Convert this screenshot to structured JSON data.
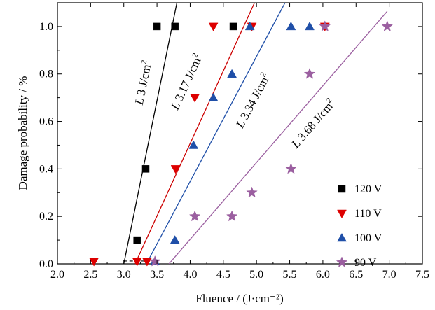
{
  "chart_data": {
    "type": "scatter",
    "xlabel": "Fluence / (J·cm⁻²)",
    "ylabel": "Damage probability / %",
    "xlim": [
      2.0,
      7.5
    ],
    "ylim": [
      0.0,
      1.1
    ],
    "xticks": [
      "2.0",
      "2.5",
      "3.0",
      "3.5",
      "4.0",
      "4.5",
      "5.0",
      "5.5",
      "6.0",
      "6.5",
      "7.0",
      "7.5"
    ],
    "yticks": [
      "0.0",
      "0.2",
      "0.4",
      "0.6",
      "0.8",
      "1.0"
    ],
    "grid": false,
    "legend_position": "right",
    "series": [
      {
        "name": "120 V",
        "marker": "square",
        "color": "#000000",
        "x": [
          3.2,
          3.33,
          3.5,
          3.77,
          4.65
        ],
        "y": [
          0.1,
          0.4,
          1.0,
          1.0,
          1.0
        ]
      },
      {
        "name": "110 V",
        "marker": "triangle-down",
        "color": "#dd0000",
        "x": [
          2.55,
          3.2,
          3.35,
          3.78,
          4.07,
          4.35,
          4.93,
          6.03
        ],
        "y": [
          0.01,
          0.01,
          0.01,
          0.4,
          0.7,
          1.0,
          1.0,
          1.0
        ]
      },
      {
        "name": "100 V",
        "marker": "triangle-up",
        "color": "#1f4fa8",
        "x": [
          3.47,
          3.77,
          4.05,
          4.35,
          4.63,
          4.9,
          5.52,
          5.8
        ],
        "y": [
          0.01,
          0.1,
          0.5,
          0.7,
          0.8,
          1.0,
          1.0,
          1.0
        ]
      },
      {
        "name": "90 V",
        "marker": "star",
        "color": "#9b5fa0",
        "x": [
          3.47,
          4.07,
          4.63,
          4.93,
          5.52,
          5.8,
          6.03,
          6.97
        ],
        "y": [
          0.01,
          0.2,
          0.2,
          0.3,
          0.4,
          0.8,
          1.0,
          1.0
        ]
      }
    ],
    "fit_lines": [
      {
        "label_prefix": "L ",
        "label_value": "3 J/cm",
        "label_sup": "2",
        "color": "#000000",
        "x": [
          3.0,
          3.8
        ],
        "y": [
          0.0,
          1.1
        ],
        "label_x": 3.35,
        "label_y": 0.76
      },
      {
        "label_prefix": "L ",
        "label_value": "3.17 J/cm",
        "label_sup": "2",
        "color": "#cc0000",
        "x": [
          3.17,
          4.97
        ],
        "y": [
          0.0,
          1.1
        ],
        "label_x": 4.0,
        "label_y": 0.76
      },
      {
        "label_prefix": "L ",
        "label_value": "3.34 J/cm",
        "label_sup": "2",
        "color": "#1f4fa8",
        "x": [
          3.34,
          5.43
        ],
        "y": [
          0.0,
          1.1
        ],
        "label_x": 5.0,
        "label_y": 0.68
      },
      {
        "label_prefix": "L ",
        "label_value": "3.68 J/cm",
        "label_sup": "2",
        "color": "#9b5fa0",
        "x": [
          3.68,
          6.97
        ],
        "y": [
          0.0,
          1.064
        ],
        "label_x": 5.9,
        "label_y": 0.58
      }
    ]
  }
}
